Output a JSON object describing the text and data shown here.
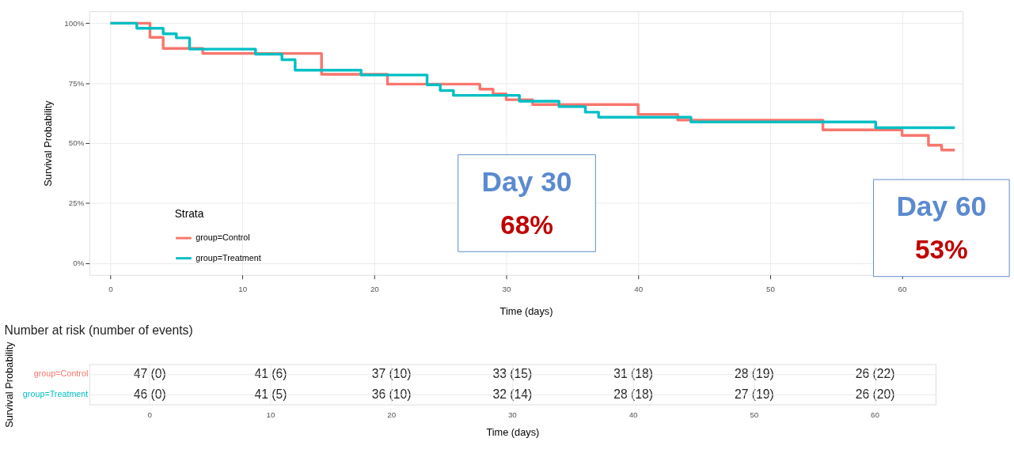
{
  "chart_data": [
    {
      "type": "step",
      "xlabel": "Time (days)",
      "ylabel": "Survival Probability",
      "legend_title": "Strata",
      "legend": "bottom left",
      "grid": true,
      "line_style": "solid",
      "marker": "none",
      "xlim": [
        -1.6,
        64.6
      ],
      "xticks": [
        0,
        10,
        20,
        30,
        40,
        50,
        60
      ],
      "ylim": [
        -5,
        105
      ],
      "yticks": [
        {
          "value": 0,
          "label": "0%"
        },
        {
          "value": 25,
          "label": "25%"
        },
        {
          "value": 50,
          "label": "50%"
        },
        {
          "value": 75,
          "label": "75%"
        },
        {
          "value": 100,
          "label": "100%"
        }
      ],
      "series": [
        {
          "name": "group=Control",
          "color": "#f8766d",
          "x": [
            0,
            3,
            4,
            7,
            16,
            21,
            28,
            29,
            30,
            32,
            40,
            43,
            54,
            60,
            62,
            63,
            64
          ],
          "values": [
            100,
            94.1,
            89.5,
            87.4,
            78.7,
            74.6,
            72.5,
            70.5,
            68.1,
            66.1,
            62,
            59.6,
            55.5,
            53.2,
            49.1,
            47.1,
            47.1
          ]
        },
        {
          "name": "group=Treatment",
          "color": "#00bfc4",
          "x": [
            0,
            2,
            4,
            5,
            6,
            11,
            13,
            14,
            19,
            24,
            25,
            26,
            31,
            34,
            36,
            37,
            44,
            58,
            64
          ],
          "values": [
            100,
            97.9,
            95.6,
            93.9,
            89.2,
            87.1,
            84.8,
            80.4,
            78.4,
            74.3,
            71.9,
            69.9,
            67.5,
            65.2,
            62.9,
            60.8,
            58.8,
            56.4,
            56.4
          ]
        }
      ],
      "annotations": [
        "Day 30",
        "68%",
        "Day 60",
        "53%"
      ]
    },
    {
      "type": "heatmap",
      "title": "Number at risk (number of events)",
      "xlabel": "Time (days)",
      "ylabel": "Survival Probability",
      "grid": true,
      "categories": [
        "0",
        "10",
        "20",
        "30",
        "40",
        "50",
        "60"
      ],
      "y_categories": [
        "group=Control",
        "group=Treatment"
      ],
      "colors": [
        "#f8766d",
        "#00bfc4"
      ],
      "cells": [
        [
          "47 (0)",
          "41 (6)",
          "37 (10)",
          "33 (15)",
          "31 (18)",
          "28 (19)",
          "26 (22)"
        ],
        [
          "46 (0)",
          "41 (5)",
          "36 (10)",
          "32 (14)",
          "28 (18)",
          "27 (19)",
          "26 (20)"
        ]
      ]
    }
  ]
}
